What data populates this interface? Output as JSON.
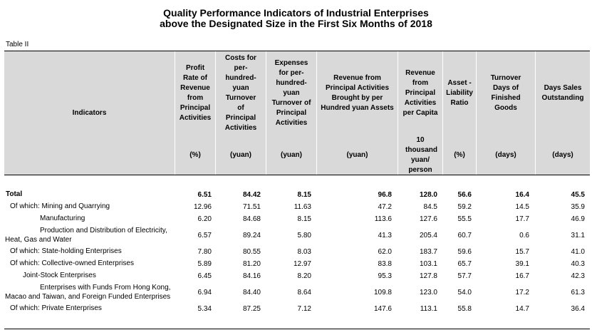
{
  "title": {
    "line1": "Quality Performance Indicators of Industrial Enterprises",
    "line2": "above the Designated Size in the First Six Months of 2018"
  },
  "table_label": "Table II",
  "header": {
    "indicators": "Indicators",
    "columns": [
      {
        "name": "Profit Rate of Revenue from Principal Activities",
        "unit": "(%)"
      },
      {
        "name": "Costs for per-hundred-yuan Turnover of Principal Activities",
        "unit": "(yuan)"
      },
      {
        "name": "Expenses for per-hundred-yuan Turnover of Principal Activities",
        "unit": "(yuan)"
      },
      {
        "name": "Revenue from Principal Activities Brought by per Hundred yuan Assets",
        "unit": "(yuan)"
      },
      {
        "name": "Revenue from Principal Activities per Capita",
        "unit": "10 thousand yuan/ person"
      },
      {
        "name": "Asset - Liability Ratio",
        "unit": "(%)"
      },
      {
        "name": "Turnover Days of Finished Goods",
        "unit": "(days)"
      },
      {
        "name": "Days Sales Outstanding",
        "unit": "(days)"
      }
    ]
  },
  "rows": [
    {
      "label_lines": [
        "Total"
      ],
      "values": [
        "6.51",
        "84.42",
        "8.15",
        "96.8",
        "128.0",
        "56.6",
        "16.4",
        "45.5"
      ]
    },
    {
      "label_lines": [
        "Of which: Mining and Quarrying"
      ],
      "values": [
        "12.96",
        "71.51",
        "11.63",
        "47.2",
        "84.5",
        "59.2",
        "14.5",
        "35.9"
      ]
    },
    {
      "label_lines": [
        "Manufacturing"
      ],
      "values": [
        "6.20",
        "84.68",
        "8.15",
        "113.6",
        "127.6",
        "55.5",
        "17.7",
        "46.9"
      ]
    },
    {
      "label_lines": [
        "Production and Distribution of Electricity,",
        "Heat, Gas and Water"
      ],
      "values": [
        "6.57",
        "89.24",
        "5.80",
        "41.3",
        "205.4",
        "60.7",
        "0.6",
        "31.1"
      ]
    },
    {
      "label_lines": [
        "Of which: State-holding Enterprises"
      ],
      "values": [
        "7.80",
        "80.55",
        "8.03",
        "62.0",
        "183.7",
        "59.6",
        "15.7",
        "41.0"
      ]
    },
    {
      "label_lines": [
        "Of which: Collective-owned Enterprises"
      ],
      "values": [
        "5.89",
        "81.20",
        "12.97",
        "83.8",
        "103.1",
        "65.7",
        "39.1",
        "40.3"
      ]
    },
    {
      "label_lines": [
        "Joint-Stock Enterprises"
      ],
      "values": [
        "6.45",
        "84.16",
        "8.20",
        "95.3",
        "127.8",
        "57.7",
        "16.7",
        "42.3"
      ]
    },
    {
      "label_lines": [
        "Enterprises with Funds From Hong Kong,",
        "Macao and Taiwan, and Foreign Funded Enterprises"
      ],
      "values": [
        "6.94",
        "84.40",
        "8.64",
        "109.8",
        "123.0",
        "54.0",
        "17.2",
        "61.3"
      ]
    },
    {
      "label_lines": [
        "Of which: Private Enterprises"
      ],
      "values": [
        "5.34",
        "87.25",
        "7.12",
        "147.6",
        "113.1",
        "55.8",
        "14.7",
        "36.4"
      ]
    }
  ]
}
